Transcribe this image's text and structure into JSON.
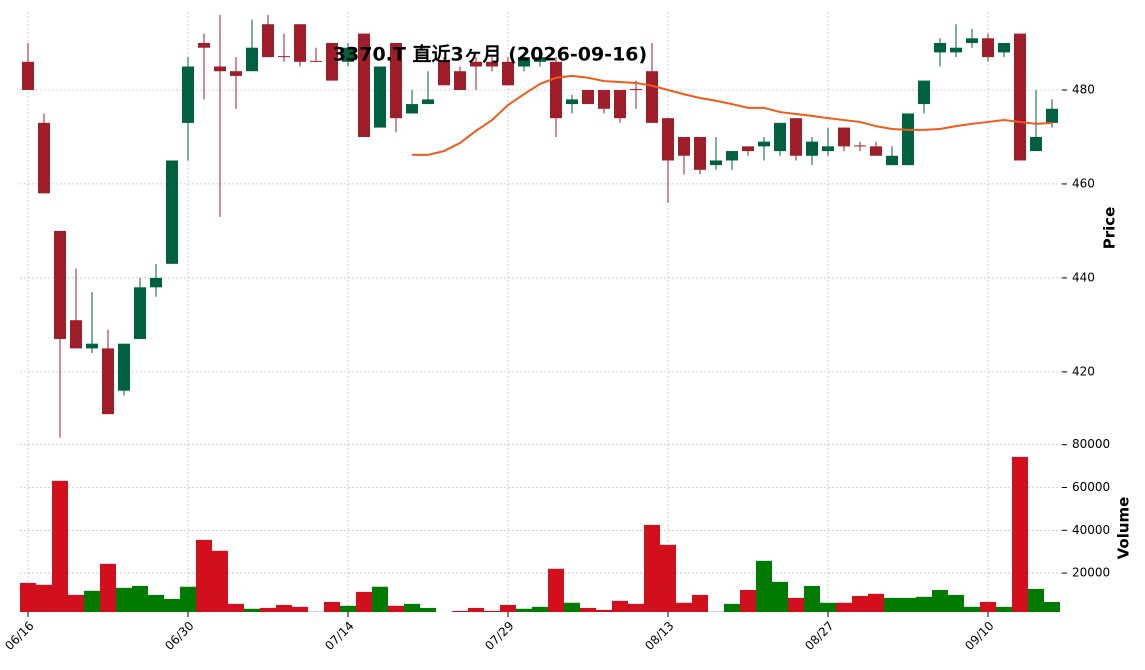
{
  "chart_data": {
    "type": "candlestick",
    "title": "3370.T 直近3ヶ月 (2026-09-16)",
    "categories": [
      "06/16",
      null,
      null,
      null,
      null,
      null,
      null,
      null,
      null,
      null,
      "06/30",
      null,
      null,
      null,
      null,
      null,
      null,
      null,
      null,
      null,
      "07/14",
      null,
      null,
      null,
      null,
      null,
      null,
      null,
      null,
      null,
      "07/29",
      null,
      null,
      null,
      null,
      null,
      null,
      null,
      null,
      null,
      "08/13",
      null,
      null,
      null,
      null,
      null,
      null,
      null,
      null,
      null,
      "08/27",
      null,
      null,
      null,
      null,
      null,
      null,
      null,
      null,
      null,
      "09/10",
      null,
      null,
      null,
      null
    ],
    "open": [
      486,
      473,
      450,
      431,
      425,
      425,
      416,
      427,
      438,
      443,
      473,
      490,
      485,
      484,
      484,
      494,
      487.2,
      494,
      486.2,
      490,
      486,
      492,
      472,
      490,
      475,
      477,
      486,
      484,
      486,
      486,
      486,
      485,
      486,
      486,
      477,
      480,
      480,
      480,
      480.2,
      484,
      474,
      470,
      470,
      464,
      465,
      468,
      468,
      467,
      474,
      466,
      467,
      472,
      468.2,
      468,
      464,
      464,
      477,
      488,
      488,
      490,
      491,
      488,
      492,
      467,
      473
    ],
    "high": [
      490,
      475,
      450,
      442,
      437,
      429,
      426,
      440,
      443,
      465,
      487,
      492,
      496,
      487,
      495,
      496,
      492,
      494,
      489,
      490,
      490,
      492,
      485,
      490,
      480,
      484,
      487,
      485,
      487,
      487,
      487,
      488,
      488,
      487,
      479,
      480,
      480,
      480,
      482,
      490,
      474,
      470,
      470,
      470,
      467,
      468,
      470,
      473,
      474,
      470,
      472,
      472,
      469,
      469,
      468,
      475,
      482,
      491,
      494,
      493,
      492,
      490,
      492,
      480,
      478
    ],
    "low": [
      480,
      458,
      406,
      425,
      424,
      411,
      415,
      427,
      436,
      443,
      465,
      478,
      453,
      476,
      484,
      487,
      486,
      485,
      486,
      482,
      485,
      470,
      472,
      471,
      475,
      477,
      481,
      480,
      480,
      484,
      481,
      484,
      485,
      470,
      475,
      477,
      475,
      473,
      476,
      473,
      456,
      462,
      462,
      463,
      463,
      466,
      465,
      466,
      465,
      464,
      466,
      467,
      467,
      466,
      464,
      464,
      475,
      485,
      487,
      489,
      486,
      487,
      465,
      467,
      472
    ],
    "close": [
      480,
      458,
      427,
      425,
      426,
      411,
      426,
      438,
      440,
      465,
      485,
      489,
      484,
      483,
      489,
      487,
      487,
      486,
      486,
      482,
      489,
      470,
      485,
      474,
      477,
      478,
      481,
      480,
      485,
      485,
      481,
      487,
      487,
      474,
      478,
      477,
      476,
      474,
      480,
      473,
      465,
      466,
      463,
      465,
      467,
      467,
      469,
      473,
      466,
      469,
      468,
      468,
      468,
      466,
      466,
      475,
      482,
      490,
      489,
      491,
      487,
      490,
      465,
      470,
      476
    ],
    "up_color": "#00613e",
    "down_color": "#9e1f2a",
    "ma": {
      "color": "#f05a18",
      "values": [
        null,
        null,
        null,
        null,
        null,
        null,
        null,
        null,
        null,
        null,
        null,
        null,
        null,
        null,
        null,
        null,
        null,
        null,
        null,
        null,
        null,
        null,
        null,
        null,
        466.2,
        466.2,
        467.0,
        468.7,
        471.3,
        473.6,
        476.8,
        479.1,
        481.3,
        482.6,
        483.0,
        482.6,
        481.9,
        481.7,
        481.5,
        480.9,
        480.0,
        479.1,
        478.3,
        477.7,
        477.0,
        476.2,
        476.2,
        475.3,
        474.9,
        474.5,
        474.0,
        473.6,
        473.2,
        472.3,
        471.7,
        471.5,
        471.5,
        471.7,
        472.3,
        472.8,
        473.2,
        473.6,
        473.2,
        472.8,
        473.0
      ]
    },
    "ylabel": "Price",
    "ylim": [
      405.5,
      496.6
    ],
    "yticks": [
      420,
      440,
      460,
      480
    ],
    "volume": [
      15400,
      14500,
      63100,
      9800,
      11700,
      24300,
      13100,
      14000,
      9800,
      7900,
      13600,
      35500,
      30400,
      5600,
      3300,
      3700,
      5100,
      4200,
      1900,
      6500,
      4700,
      11200,
      13600,
      4700,
      5600,
      3700,
      1800,
      2300,
      3700,
      2300,
      5100,
      3300,
      4200,
      22000,
      6100,
      3700,
      2800,
      7000,
      5600,
      42500,
      33200,
      6100,
      9800,
      1900,
      5600,
      12100,
      25700,
      15900,
      8400,
      14000,
      6100,
      6100,
      9300,
      10300,
      8400,
      8400,
      8900,
      12100,
      9800,
      4200,
      6500,
      4200,
      74300,
      12600,
      6500
    ],
    "volume_up_color": "#007a00",
    "volume_down_color": "#d20f1d",
    "y2label": "Volume",
    "y2lim": [
      1800,
      82200
    ],
    "y2ticks": [
      20000,
      40000,
      60000,
      80000
    ],
    "grid": true
  }
}
